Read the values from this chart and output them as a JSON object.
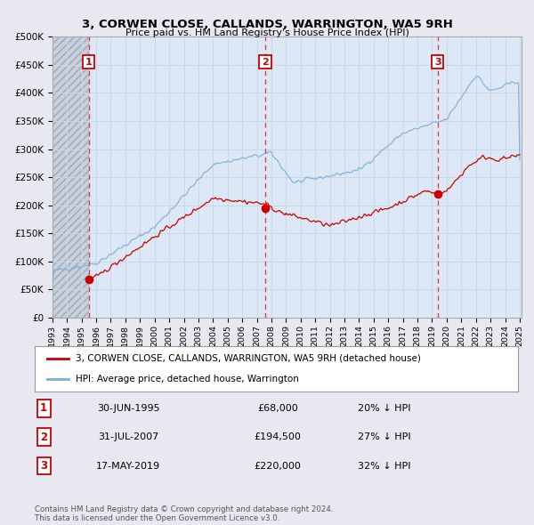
{
  "title1": "3, CORWEN CLOSE, CALLANDS, WARRINGTON, WA5 9RH",
  "title2": "Price paid vs. HM Land Registry's House Price Index (HPI)",
  "property_label": "3, CORWEN CLOSE, CALLANDS, WARRINGTON, WA5 9RH (detached house)",
  "hpi_label": "HPI: Average price, detached house, Warrington",
  "sale_year_nums": [
    1995.5,
    2007.583,
    2019.375
  ],
  "sale_prices": [
    68000,
    194500,
    220000
  ],
  "sale_labels": [
    "1",
    "2",
    "3"
  ],
  "sale_notes": [
    "30-JUN-1995",
    "31-JUL-2007",
    "17-MAY-2019"
  ],
  "sale_amounts": [
    "£68,000",
    "£194,500",
    "£220,000"
  ],
  "sale_hpi": [
    "20% ↓ HPI",
    "27% ↓ HPI",
    "32% ↓ HPI"
  ],
  "property_color": "#cc0000",
  "hpi_color": "#7ab0d4",
  "vline_color": "#dd4444",
  "background_color": "#e8e8f0",
  "plot_bg_color": "#dce8f5",
  "hatch_bg_color": "#c8d0dc",
  "grid_color": "#c8d8e8",
  "ylim": [
    0,
    500000
  ],
  "yticks": [
    0,
    50000,
    100000,
    150000,
    200000,
    250000,
    300000,
    350000,
    400000,
    450000,
    500000
  ],
  "footer": "Contains HM Land Registry data © Crown copyright and database right 2024.\nThis data is licensed under the Open Government Licence v3.0."
}
